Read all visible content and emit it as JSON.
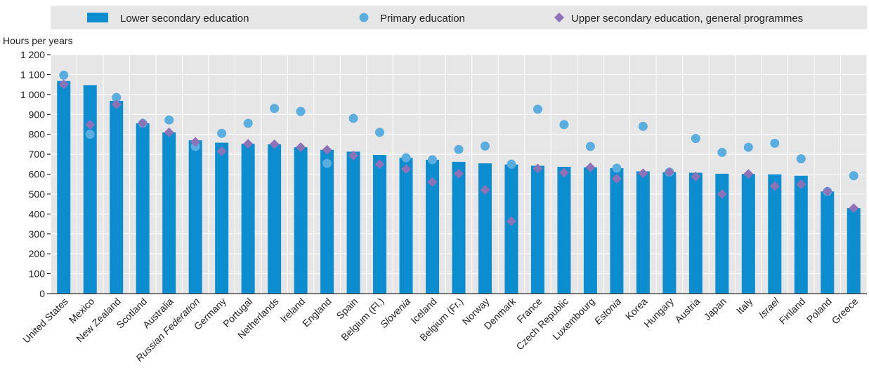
{
  "chart_data": {
    "type": "bar",
    "ylabel": "Hours per years",
    "ylim": [
      0,
      1200
    ],
    "yticks": [
      0,
      100,
      200,
      300,
      400,
      500,
      600,
      700,
      800,
      900,
      1000,
      1100,
      1200
    ],
    "ytick_labels": [
      "0",
      "100",
      "200",
      "300",
      "400",
      "500",
      "600",
      "700",
      "800",
      "900",
      "1 000",
      "1 100",
      "1 200"
    ],
    "grid": true,
    "legend_position": "top",
    "categories": [
      "United States",
      "Mexico",
      "New Zealand",
      "Scotland",
      "Australia",
      "Russian Federation",
      "Germany",
      "Portugal",
      "Netherlands",
      "Ireland",
      "England",
      "Spain",
      "Belgium (Fl.)",
      "Slovenia",
      "Iceland",
      "Belgium (Fr.)",
      "Norway",
      "Denmark",
      "France",
      "Czech Republic",
      "Luxembourg",
      "Estonia",
      "Korea",
      "Hungary",
      "Austria",
      "Japan",
      "Italy",
      "Israel",
      "Finland",
      "Poland",
      "Greece"
    ],
    "italic_categories": [
      "Russian Federation",
      "Slovenia",
      "Estonia",
      "Israel"
    ],
    "series": [
      {
        "name": "Lower secondary education",
        "mark": "bar",
        "color": "#0b8dcf",
        "values": [
          1068,
          1047,
          968,
          855,
          810,
          770,
          758,
          752,
          750,
          735,
          722,
          713,
          697,
          682,
          672,
          662,
          654,
          648,
          642,
          637,
          634,
          630,
          614,
          610,
          607,
          602,
          601,
          599,
          592,
          513,
          429
        ]
      },
      {
        "name": "Primary education",
        "mark": "circle",
        "color": "#5aaedf",
        "values": [
          1097,
          800,
          985,
          855,
          872,
          739,
          805,
          855,
          930,
          915,
          654,
          880,
          810,
          682,
          672,
          724,
          741,
          650,
          926,
          849,
          739,
          630,
          840,
          610,
          779,
          709,
          735,
          755,
          677,
          513,
          592
        ]
      },
      {
        "name": "Upper secondary education, general programmes",
        "mark": "diamond",
        "color": "#8e72b8",
        "values": [
          1051,
          848,
          950,
          855,
          810,
          762,
          715,
          752,
          750,
          735,
          722,
          693,
          650,
          625,
          560,
          602,
          521,
          364,
          628,
          608,
          634,
          577,
          604,
          610,
          588,
          500,
          601,
          540,
          549,
          513,
          429
        ]
      }
    ]
  }
}
